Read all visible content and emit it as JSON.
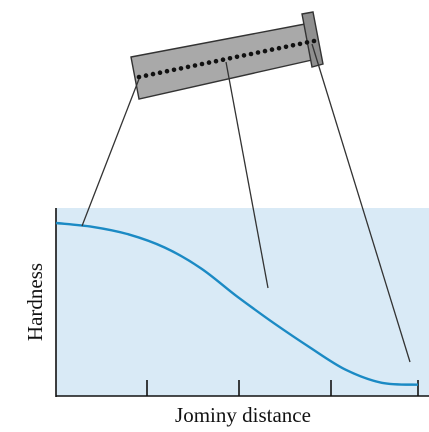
{
  "labels": {
    "y_axis": "Hardness",
    "x_axis": "Jominy distance"
  },
  "chart_data": {
    "type": "line",
    "title": "",
    "xlabel": "Jominy distance",
    "ylabel": "Hardness",
    "series": [
      {
        "x": [
          0,
          0.1,
          0.2,
          0.3,
          0.4,
          0.5,
          0.6,
          0.7,
          0.8,
          0.9,
          1.0
        ],
        "values": [
          0.92,
          0.9,
          0.86,
          0.79,
          0.68,
          0.53,
          0.39,
          0.26,
          0.14,
          0.07,
          0.06
        ]
      }
    ],
    "xlim": [
      0,
      1
    ],
    "ylim": [
      0,
      1
    ],
    "x_ticks_count": 4,
    "grid": false
  },
  "colors": {
    "plot_background": "#d9eaf6",
    "curve": "#1b8ac4",
    "bar_fill": "#a9a9a9",
    "bar_outline": "#333333",
    "dots": "#111111",
    "leader_lines": "#333333",
    "axes": "#111111"
  }
}
